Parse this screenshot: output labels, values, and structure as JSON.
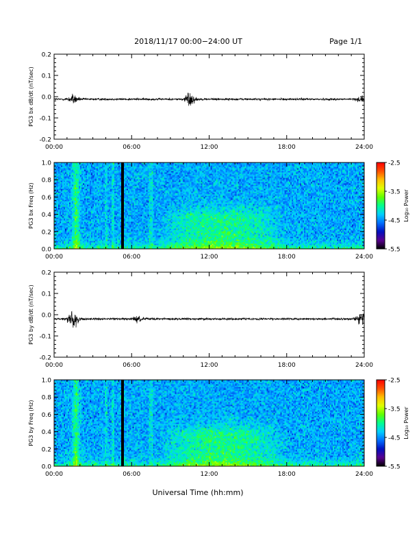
{
  "header": {
    "title": "2018/11/17  00:00−24:00 UT",
    "page": "Page 1/1"
  },
  "xlabel": "Universal Time (hh:mm)",
  "colors": {
    "colormap": [
      "#000000",
      "#5a0090",
      "#0010c0",
      "#0070ff",
      "#00d0ff",
      "#00ff90",
      "#60ff00",
      "#e0ff00",
      "#ffc000",
      "#ff5000",
      "#ff0000"
    ],
    "trace": "#000000",
    "data_gap": "#000000"
  },
  "chart_data": [
    {
      "type": "line",
      "name": "panel-1",
      "ylabel": "PG3 bx dB/dt (nT/sec)",
      "xlim": [
        0,
        24
      ],
      "ylim": [
        -0.2,
        0.2
      ],
      "xticks": [
        "00:00",
        "06:00",
        "12:00",
        "18:00",
        "24:00"
      ],
      "yticks": [
        "-0.2",
        "-0.1",
        "0.0",
        "0.1",
        "0.2"
      ],
      "baseline": -0.012,
      "noise_floor": 0.006,
      "events": [
        {
          "t": 1.5,
          "amp": 0.025
        },
        {
          "t": 10.5,
          "amp": 0.04
        },
        {
          "t": 23.8,
          "amp": 0.015
        }
      ]
    },
    {
      "type": "heatmap",
      "name": "panel-2",
      "ylabel": "PG3 bx Freq (Hz)",
      "xlim": [
        0,
        24
      ],
      "ylim": [
        0,
        1.0
      ],
      "xticks": [
        "00:00",
        "06:00",
        "12:00",
        "18:00",
        "24:00"
      ],
      "yticks": [
        "0.0",
        "0.2",
        "0.4",
        "0.6",
        "0.8",
        "1.0"
      ],
      "colorbar": {
        "label": "Log₁₀ Power",
        "range": [
          -5.5,
          -2.5
        ],
        "ticks": [
          "-2.5",
          "-3.5",
          "-4.5",
          "-5.5"
        ]
      },
      "data_gap": [
        5.2,
        5.4
      ],
      "features": [
        {
          "kind": "broadband_burst",
          "t": 1.7
        },
        {
          "kind": "low_freq_enhancement",
          "t_range": [
            8,
            18
          ],
          "f_max": 0.4
        }
      ]
    },
    {
      "type": "line",
      "name": "panel-3",
      "ylabel": "PG3 by dB/dt (nT/sec)",
      "xlim": [
        0,
        24
      ],
      "ylim": [
        -0.2,
        0.2
      ],
      "xticks": [
        "00:00",
        "06:00",
        "12:00",
        "18:00",
        "24:00"
      ],
      "yticks": [
        "-0.2",
        "-0.1",
        "0.0",
        "0.1",
        "0.2"
      ],
      "baseline": -0.02,
      "noise_floor": 0.006,
      "events": [
        {
          "t": 1.5,
          "amp": 0.05
        },
        {
          "t": 6.5,
          "amp": 0.015
        },
        {
          "t": 23.8,
          "amp": 0.04
        }
      ]
    },
    {
      "type": "heatmap",
      "name": "panel-4",
      "ylabel": "PG3 by Freq (Hz)",
      "xlim": [
        0,
        24
      ],
      "ylim": [
        0,
        1.0
      ],
      "xticks": [
        "00:00",
        "06:00",
        "12:00",
        "18:00",
        "24:00"
      ],
      "yticks": [
        "0.0",
        "0.2",
        "0.4",
        "0.6",
        "0.8",
        "1.0"
      ],
      "colorbar": {
        "label": "Log₁₀ Power",
        "range": [
          -5.5,
          -2.5
        ],
        "ticks": [
          "-2.5",
          "-3.5",
          "-4.5",
          "-5.5"
        ]
      },
      "data_gap": [
        5.2,
        5.4
      ],
      "features": [
        {
          "kind": "broadband_burst",
          "t": 1.7
        },
        {
          "kind": "low_freq_enhancement",
          "t_range": [
            8,
            18
          ],
          "f_max": 0.4
        }
      ]
    }
  ]
}
